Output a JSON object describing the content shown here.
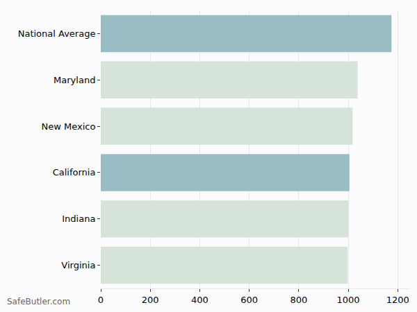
{
  "chart_data": {
    "type": "bar",
    "orientation": "horizontal",
    "categories": [
      "National Average",
      "Maryland",
      "New Mexico",
      "California",
      "Indiana",
      "Virginia"
    ],
    "values": [
      1175,
      1038,
      1018,
      1005,
      1002,
      998
    ],
    "colors": [
      "#98bdc5",
      "#d5e3d9",
      "#d5e3d9",
      "#98bdc5",
      "#d5e3d9",
      "#d5e3d9"
    ],
    "xlim": [
      0,
      1250
    ],
    "xticks": [
      0,
      200,
      400,
      600,
      800,
      1000,
      1200
    ],
    "grid": true,
    "annotations": [
      "SafeButler.com"
    ]
  }
}
